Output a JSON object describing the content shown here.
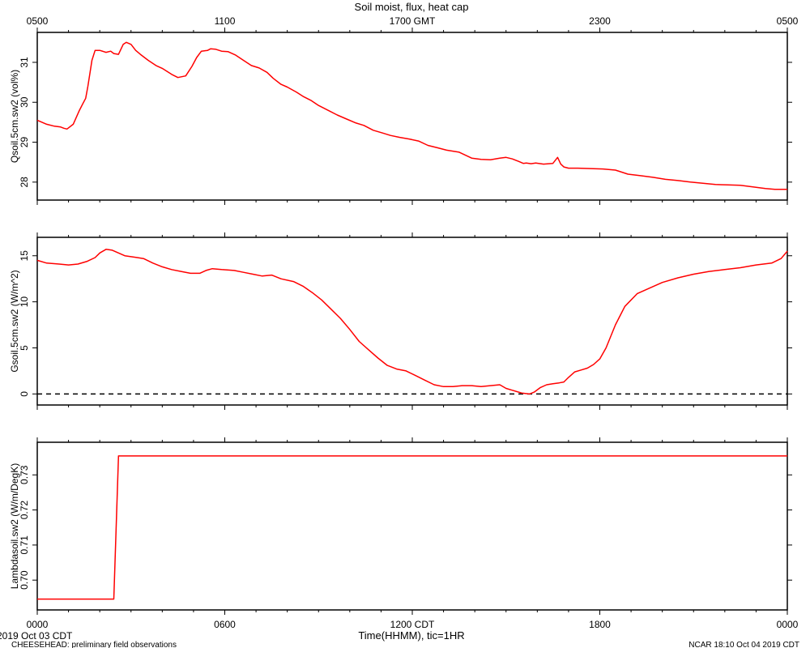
{
  "chart_data": {
    "type": "line",
    "title": "Soil moist, flux, heat cap",
    "top_axis": {
      "title": "",
      "tick_labels": [
        "0500",
        "1100",
        "1700 GMT",
        "2300",
        "0500"
      ],
      "tick_hours": [
        0,
        6,
        12,
        18,
        24
      ]
    },
    "bottom_axis": {
      "title": "Time(HHMM), tic=1HR",
      "tick_labels": [
        "0000",
        "0600",
        "1200 CDT",
        "1800",
        "0000"
      ],
      "tick_hours": [
        0,
        6,
        12,
        18,
        24
      ],
      "xlim": [
        0,
        24
      ]
    },
    "footer": {
      "start_date": "2019 Oct 03 CDT",
      "project": "CHEESEHEAD: preliminary field observations",
      "stamp": "NCAR 18:10 Oct 04 2019 CDT"
    },
    "panels": [
      {
        "ylabel": "Qsoil.5cm.sw2 (vol%)",
        "ylim": [
          27.55,
          31.75
        ],
        "yticks": [
          28,
          29,
          30,
          31
        ],
        "ytick_labels": [
          "28",
          "29",
          "30",
          "31"
        ],
        "zero_line": false,
        "series": [
          {
            "color": "#ff0000",
            "x": [
              0,
              0.3,
              0.55,
              0.75,
              0.85,
              0.95,
              1.15,
              1.35,
              1.45,
              1.55,
              1.62,
              1.7,
              1.75,
              1.85,
              2.0,
              2.2,
              2.35,
              2.45,
              2.6,
              2.75,
              2.85,
              3.0,
              3.15,
              3.3,
              3.55,
              3.8,
              4.0,
              4.3,
              4.5,
              4.75,
              4.95,
              5.1,
              5.25,
              5.45,
              5.55,
              5.7,
              5.9,
              6.1,
              6.35,
              6.6,
              6.85,
              7.1,
              7.35,
              7.55,
              7.8,
              8.0,
              8.3,
              8.5,
              8.75,
              9.0,
              9.3,
              9.6,
              9.9,
              10.2,
              10.45,
              10.75,
              11.05,
              11.3,
              11.6,
              11.9,
              12.2,
              12.5,
              12.8,
              13.1,
              13.5,
              13.9,
              14.2,
              14.5,
              14.8,
              15.0,
              15.2,
              15.4,
              15.55,
              15.65,
              15.8,
              15.95,
              16.2,
              16.5,
              16.65,
              16.75,
              16.85,
              17.0,
              17.3,
              17.7,
              18.1,
              18.5,
              18.9,
              19.3,
              19.7,
              20.1,
              20.5,
              20.9,
              21.3,
              21.7,
              22.1,
              22.5,
              22.9,
              23.3,
              23.6,
              24.0
            ],
            "y": [
              29.55,
              29.45,
              29.4,
              29.38,
              29.35,
              29.33,
              29.45,
              29.8,
              29.95,
              30.1,
              30.4,
              30.8,
              31.05,
              31.3,
              31.3,
              31.25,
              31.28,
              31.22,
              31.2,
              31.45,
              31.5,
              31.45,
              31.3,
              31.2,
              31.05,
              30.92,
              30.85,
              30.7,
              30.62,
              30.66,
              30.9,
              31.12,
              31.28,
              31.3,
              31.34,
              31.33,
              31.28,
              31.27,
              31.18,
              31.05,
              30.92,
              30.86,
              30.75,
              30.6,
              30.45,
              30.38,
              30.25,
              30.15,
              30.05,
              29.92,
              29.8,
              29.68,
              29.58,
              29.48,
              29.42,
              29.3,
              29.23,
              29.17,
              29.12,
              29.08,
              29.03,
              28.92,
              28.86,
              28.8,
              28.75,
              28.6,
              28.57,
              28.56,
              28.6,
              28.62,
              28.58,
              28.52,
              28.47,
              28.48,
              28.46,
              28.48,
              28.45,
              28.47,
              28.62,
              28.45,
              28.38,
              28.35,
              28.35,
              28.34,
              28.33,
              28.3,
              28.2,
              28.16,
              28.12,
              28.07,
              28.04,
              28.0,
              27.97,
              27.94,
              27.93,
              27.92,
              27.88,
              27.84,
              27.82,
              27.82
            ]
          }
        ]
      },
      {
        "ylabel": "Gsoil.5cm.sw2 (W/m^2)",
        "ylim": [
          -1.2,
          17.0
        ],
        "yticks": [
          0,
          5,
          10,
          15
        ],
        "ytick_labels": [
          "0",
          "5",
          "10",
          "15"
        ],
        "zero_line": true,
        "series": [
          {
            "color": "#ff0000",
            "x": [
              0,
              0.3,
              0.7,
              1.0,
              1.3,
              1.6,
              1.85,
              2.0,
              2.2,
              2.4,
              2.6,
              2.8,
              3.0,
              3.2,
              3.4,
              3.7,
              4.0,
              4.3,
              4.6,
              4.9,
              5.2,
              5.4,
              5.6,
              5.9,
              6.3,
              6.6,
              6.9,
              7.2,
              7.5,
              7.8,
              8.2,
              8.5,
              8.8,
              9.1,
              9.4,
              9.7,
              10.0,
              10.3,
              10.6,
              10.9,
              11.2,
              11.5,
              11.8,
              12.1,
              12.4,
              12.7,
              13.0,
              13.3,
              13.6,
              13.9,
              14.2,
              14.5,
              14.8,
              15.0,
              15.2,
              15.5,
              15.75,
              15.9,
              16.1,
              16.3,
              16.5,
              16.7,
              16.85,
              17.0,
              17.2,
              17.4,
              17.6,
              17.8,
              18.0,
              18.2,
              18.5,
              18.8,
              19.2,
              19.6,
              20.0,
              20.5,
              21.0,
              21.5,
              22.0,
              22.5,
              23.0,
              23.5,
              23.8,
              24.0
            ],
            "y": [
              14.5,
              14.2,
              14.1,
              14.0,
              14.1,
              14.4,
              14.8,
              15.3,
              15.7,
              15.6,
              15.3,
              15.0,
              14.9,
              14.8,
              14.7,
              14.2,
              13.8,
              13.5,
              13.3,
              13.1,
              13.1,
              13.4,
              13.6,
              13.5,
              13.4,
              13.2,
              13.0,
              12.8,
              12.9,
              12.5,
              12.2,
              11.7,
              11.0,
              10.2,
              9.2,
              8.2,
              7.0,
              5.7,
              4.8,
              3.9,
              3.1,
              2.7,
              2.5,
              2.0,
              1.5,
              1.0,
              0.8,
              0.8,
              0.9,
              0.9,
              0.8,
              0.9,
              1.0,
              0.6,
              0.4,
              0.1,
              0.0,
              0.2,
              0.7,
              1.0,
              1.1,
              1.2,
              1.3,
              1.8,
              2.4,
              2.6,
              2.8,
              3.2,
              3.8,
              5.0,
              7.5,
              9.5,
              10.9,
              11.5,
              12.1,
              12.6,
              13.0,
              13.3,
              13.5,
              13.7,
              14.0,
              14.2,
              14.7,
              15.5
            ]
          }
        ]
      },
      {
        "ylabel": "Lambdasoil.sw2 (W/m/DegK)",
        "ylim": [
          0.6915,
          0.7393
        ],
        "yticks": [
          0.7,
          0.71,
          0.72,
          0.73
        ],
        "ytick_labels": [
          "0.70",
          "0.71",
          "0.72",
          "0.73"
        ],
        "zero_line": false,
        "series": [
          {
            "color": "#ff0000",
            "x": [
              0,
              2.45,
              2.6,
              24.0
            ],
            "y": [
              0.6946,
              0.6946,
              0.7354,
              0.7354
            ]
          }
        ]
      }
    ]
  }
}
